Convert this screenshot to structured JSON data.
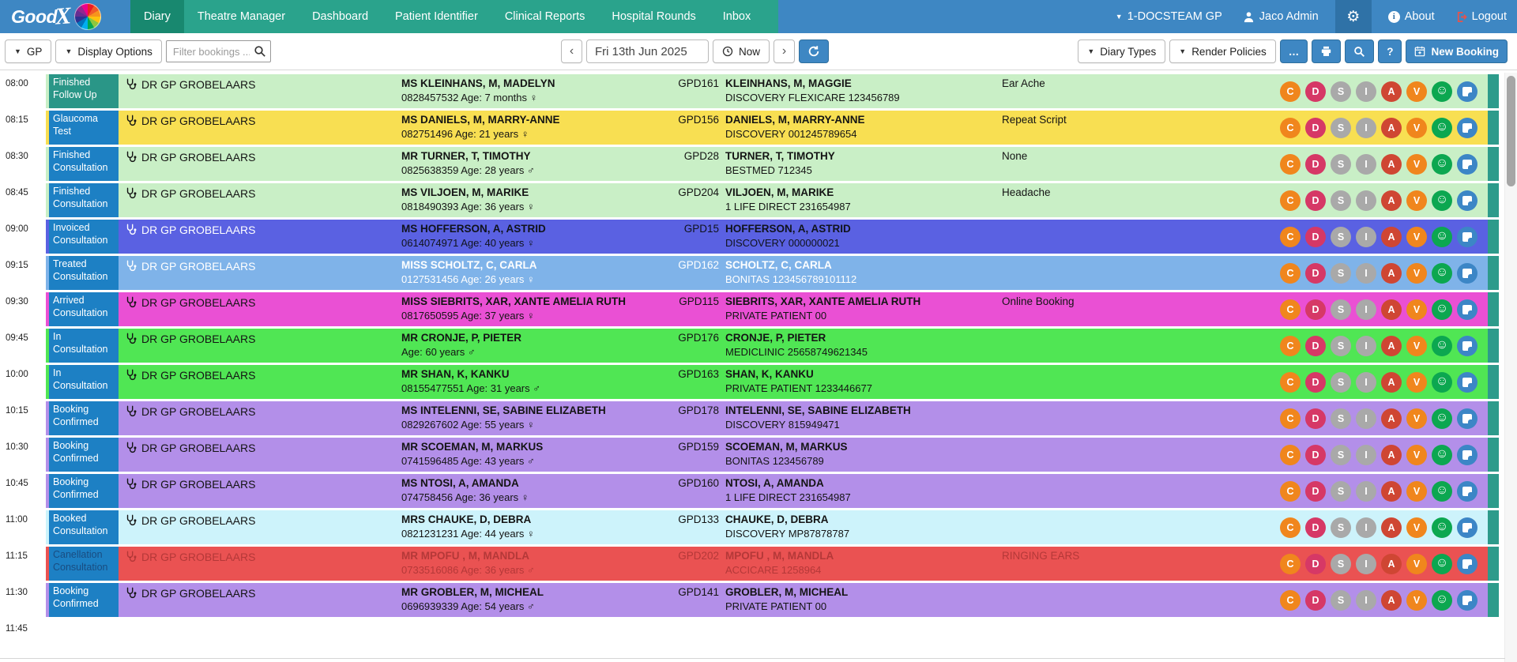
{
  "nav": {
    "brand": "Good",
    "brand_x": "X",
    "items": [
      {
        "label": "Diary",
        "active": true
      },
      {
        "label": "Theatre Manager",
        "active": false
      },
      {
        "label": "Dashboard",
        "active": false
      },
      {
        "label": "Patient Identifier",
        "active": false
      },
      {
        "label": "Clinical Reports",
        "active": false
      },
      {
        "label": "Hospital Rounds",
        "active": false
      },
      {
        "label": "Inbox",
        "active": false
      }
    ],
    "practice": "1-DOCSTEAM GP",
    "user": "Jaco Admin",
    "about": "About",
    "logout": "Logout"
  },
  "toolbar": {
    "gp": "GP",
    "display_options": "Display Options",
    "filter_placeholder": "Filter bookings ...",
    "date": "Fri 13th Jun 2025",
    "now": "Now",
    "diary_types": "Diary Types",
    "render_policies": "Render Policies",
    "more": "…",
    "help": "?",
    "new_booking": "New Booking"
  },
  "diary": {
    "row_edge_color": "#2d9b8b",
    "empty_time": "11:45",
    "action_buttons": [
      {
        "name": "c",
        "label": "C",
        "color": "#f0861d"
      },
      {
        "name": "d",
        "label": "D",
        "color": "#d63866"
      },
      {
        "name": "s",
        "label": "S",
        "color": "#a9a9a9"
      },
      {
        "name": "i",
        "label": "I",
        "color": "#a9a9a9"
      },
      {
        "name": "a",
        "label": "A",
        "color": "#cf4633"
      },
      {
        "name": "v",
        "label": "V",
        "color": "#f0861d"
      },
      {
        "name": "smiley",
        "icon": "smiley",
        "color": "#0ca750"
      },
      {
        "name": "note",
        "icon": "note",
        "color": "#3c86c6"
      }
    ],
    "rows": [
      {
        "time": "08:00",
        "status": "Finished Follow Up",
        "status_bg": "#2a9687",
        "row_bg": "#c9efc6",
        "doctor": "DR GP GROBELAARS",
        "patient_name": "MS KLEINHANS, M, MADELYN",
        "patient_details": "0828457532 Age: 7 months ♀",
        "code": "GPD161",
        "account_name": "KLEINHANS, M, MAGGIE",
        "account_details": "DISCOVERY FLEXICARE 123456789",
        "reason": "Ear Ache"
      },
      {
        "time": "08:15",
        "status": "Glaucoma Test",
        "status_bg": "#1d80c4",
        "row_bg": "#f8df52",
        "doctor": "DR GP GROBELAARS",
        "patient_name": "MS DANIELS, M, MARRY-ANNE",
        "patient_details": "082751496 Age: 21 years ♀",
        "code": "GPD156",
        "account_name": "DANIELS, M, MARRY-ANNE",
        "account_details": "DISCOVERY 001245789654",
        "reason": "Repeat Script"
      },
      {
        "time": "08:30",
        "status": "Finished Consultation",
        "status_bg": "#1d80c4",
        "row_bg": "#c9efc6",
        "doctor": "DR GP GROBELAARS",
        "patient_name": "MR TURNER, T, TIMOTHY",
        "patient_details": "0825638359 Age: 28 years ♂",
        "code": "GPD28",
        "account_name": "TURNER, T, TIMOTHY",
        "account_details": "BESTMED 712345",
        "reason": "None"
      },
      {
        "time": "08:45",
        "status": "Finished Consultation",
        "status_bg": "#1d80c4",
        "row_bg": "#c9efc6",
        "doctor": "DR GP GROBELAARS",
        "patient_name": "MS VILJOEN, M, MARIKE",
        "patient_details": "0818490393 Age: 36 years ♀",
        "code": "GPD204",
        "account_name": "VILJOEN, M, MARIKE",
        "account_details": "1 LIFE DIRECT 231654987",
        "reason": "Headache"
      },
      {
        "time": "09:00",
        "status": "Invoiced Consultation",
        "status_bg": "#1d80c4",
        "row_bg": "#5a61e2",
        "text_color": "#10131c",
        "doctor_color": "#ffffff",
        "doctor": "DR GP GROBELAARS",
        "patient_name": "MS HOFFERSON, A, ASTRID",
        "patient_details": "0614074971 Age: 40 years ♀",
        "code": "GPD15",
        "account_name": "HOFFERSON, A, ASTRID",
        "account_details": "DISCOVERY 000000021",
        "reason": ""
      },
      {
        "time": "09:15",
        "status": "Treated Consultation",
        "status_bg": "#1d80c4",
        "row_bg": "#7fb3e9",
        "text_color": "#ffffff",
        "doctor": "DR GP GROBELAARS",
        "patient_name": "MISS SCHOLTZ, C, CARLA",
        "patient_details": "0127531456 Age: 26 years ♀",
        "code": "GPD162",
        "account_name": "SCHOLTZ, C, CARLA",
        "account_details": "BONITAS 123456789101112",
        "reason": ""
      },
      {
        "time": "09:30",
        "status": "Arrived Consultation",
        "status_bg": "#1d80c4",
        "row_bg": "#ea50d4",
        "doctor": "DR GP GROBELAARS",
        "patient_name": "MISS SIEBRITS, XAR, XANTE AMELIA RUTH",
        "patient_details": "0817650595 Age: 37 years ♀",
        "code": "GPD115",
        "account_name": "SIEBRITS, XAR, XANTE AMELIA RUTH",
        "account_details": "PRIVATE PATIENT 00",
        "reason": "Online Booking"
      },
      {
        "time": "09:45",
        "status": "In Consultation",
        "status_bg": "#1d80c4",
        "row_bg": "#50e654",
        "doctor": "DR GP GROBELAARS",
        "patient_name": "MR CRONJE, P, PIETER",
        "patient_details": "Age: 60 years ♂",
        "code": "GPD176",
        "account_name": "CRONJE, P, PIETER",
        "account_details": "MEDICLINIC 25658749621345",
        "reason": ""
      },
      {
        "time": "10:00",
        "status": "In Consultation",
        "status_bg": "#1d80c4",
        "row_bg": "#50e654",
        "doctor": "DR GP GROBELAARS",
        "patient_name": "MR SHAN, K, KANKU",
        "patient_details": "08155477551 Age: 31 years ♂",
        "code": "GPD163",
        "account_name": "SHAN, K, KANKU",
        "account_details": "PRIVATE PATIENT 1233446677",
        "reason": ""
      },
      {
        "time": "10:15",
        "status": "Booking Confirmed",
        "status_bg": "#1d80c4",
        "row_bg": "#b38fe9",
        "doctor": "DR GP GROBELAARS",
        "patient_name": "MS INTELENNI, SE, SABINE ELIZABETH",
        "patient_details": "0829267602 Age: 55 years ♀",
        "code": "GPD178",
        "account_name": "INTELENNI, SE, SABINE ELIZABETH",
        "account_details": "DISCOVERY 815949471",
        "reason": ""
      },
      {
        "time": "10:30",
        "status": "Booking Confirmed",
        "status_bg": "#1d80c4",
        "row_bg": "#b38fe9",
        "doctor": "DR GP GROBELAARS",
        "patient_name": "MR SCOEMAN, M, MARKUS",
        "patient_details": "0741596485 Age: 43 years ♂",
        "code": "GPD159",
        "account_name": "SCOEMAN, M, MARKUS",
        "account_details": "BONITAS 123456789",
        "reason": ""
      },
      {
        "time": "10:45",
        "status": "Booking Confirmed",
        "status_bg": "#1d80c4",
        "row_bg": "#b38fe9",
        "doctor": "DR GP GROBELAARS",
        "patient_name": "MS NTOSI, A, AMANDA",
        "patient_details": "074758456 Age: 36 years ♀",
        "code": "GPD160",
        "account_name": "NTOSI, A, AMANDA",
        "account_details": "1 LIFE DIRECT 231654987",
        "reason": ""
      },
      {
        "time": "11:00",
        "status": "Booked Consultation",
        "status_bg": "#1d80c4",
        "row_bg": "#cdf3fb",
        "doctor": "DR GP GROBELAARS",
        "patient_name": "MRS CHAUKE, D, DEBRA",
        "patient_details": "0821231231 Age: 44 years ♀",
        "code": "GPD133",
        "account_name": "CHAUKE, D, DEBRA",
        "account_details": "DISCOVERY MP87878787",
        "reason": ""
      },
      {
        "time": "11:15",
        "status": "Canellation Consultation",
        "status_bg": "#1d80c4",
        "row_bg": "#ea5252",
        "text_color": "rgba(125,30,30,0.5)",
        "doctor_color": "rgba(125,30,30,0.5)",
        "status_text_color": "rgba(23,48,92,0.65)",
        "doctor": "DR GP GROBELAARS",
        "patient_name": "MR MPOFU , M, MANDLA",
        "patient_details": "0733516086 Age: 36 years ♂",
        "code": "GPD202",
        "account_name": "MPOFU , M, MANDLA",
        "account_details": "ACCICARE 1258964",
        "reason": "RINGING EARS"
      },
      {
        "time": "11:30",
        "status": "Booking Confirmed",
        "status_bg": "#1d80c4",
        "row_bg": "#b38fe9",
        "doctor": "DR GP GROBELAARS",
        "patient_name": "MR GROBLER, M, MICHEAL",
        "patient_details": "0696939339 Age: 54 years ♂",
        "code": "GPD141",
        "account_name": "GROBLER, M, MICHEAL",
        "account_details": "PRIVATE PATIENT 00",
        "reason": ""
      }
    ]
  }
}
